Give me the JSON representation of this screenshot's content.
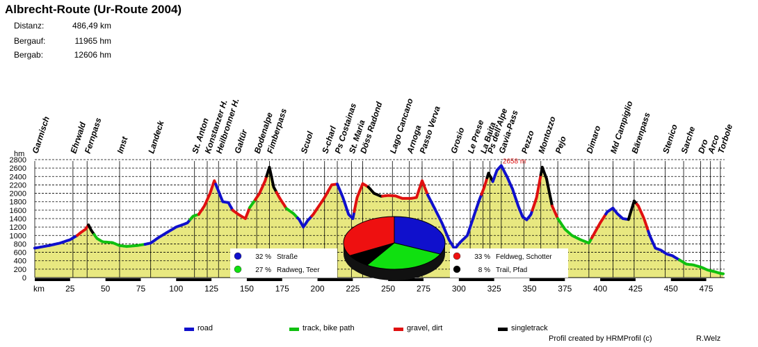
{
  "header": {
    "title": "Albrecht-Route  (Ur-Route 2004)",
    "stats": [
      {
        "label": "Distanz:",
        "value": "486,49 km"
      },
      {
        "label": "Bergauf:",
        "value": "11965 hm"
      },
      {
        "label": "Bergab:",
        "value": "12606 hm"
      }
    ]
  },
  "legend": {
    "items": [
      {
        "label": "road",
        "color": "#1010cc"
      },
      {
        "label": "track, bike path",
        "color": "#10c010"
      },
      {
        "label": "gravel, dirt",
        "color": "#e01010"
      },
      {
        "label": "singletrack",
        "color": "#000000"
      }
    ]
  },
  "footer": {
    "credit": "Profil created by HRMProfil (c)",
    "author": "R.Welz"
  },
  "chart_data": [
    {
      "type": "area",
      "xlabel": "km",
      "ylabel": "hm",
      "xlim": [
        0,
        488
      ],
      "ylim": [
        0,
        2800
      ],
      "x_ticks": [
        25,
        50,
        75,
        100,
        125,
        150,
        175,
        200,
        225,
        250,
        275,
        300,
        325,
        350,
        375,
        400,
        425,
        450,
        475
      ],
      "y_ticks": [
        0,
        200,
        400,
        600,
        800,
        1000,
        1200,
        1400,
        1600,
        1800,
        2000,
        2200,
        2400,
        2600,
        2800
      ],
      "max_label": "2658 m",
      "max_point": {
        "x": 330,
        "y": 2658
      },
      "fill_color": "#e8e880",
      "profile": [
        [
          0,
          700
        ],
        [
          5,
          730
        ],
        [
          10,
          760
        ],
        [
          18,
          820
        ],
        [
          25,
          900
        ],
        [
          30,
          1000
        ],
        [
          33,
          1080
        ],
        [
          36,
          1150
        ],
        [
          38,
          1250
        ],
        [
          40,
          1120
        ],
        [
          44,
          930
        ],
        [
          48,
          850
        ],
        [
          55,
          830
        ],
        [
          60,
          760
        ],
        [
          65,
          740
        ],
        [
          72,
          760
        ],
        [
          78,
          790
        ],
        [
          82,
          820
        ],
        [
          88,
          960
        ],
        [
          95,
          1100
        ],
        [
          100,
          1200
        ],
        [
          105,
          1260
        ],
        [
          108,
          1300
        ],
        [
          112,
          1460
        ],
        [
          116,
          1500
        ],
        [
          120,
          1700
        ],
        [
          124,
          2000
        ],
        [
          127,
          2300
        ],
        [
          130,
          2050
        ],
        [
          133,
          1800
        ],
        [
          137,
          1780
        ],
        [
          140,
          1600
        ],
        [
          144,
          1500
        ],
        [
          149,
          1400
        ],
        [
          152,
          1660
        ],
        [
          155,
          1800
        ],
        [
          159,
          2000
        ],
        [
          163,
          2300
        ],
        [
          166,
          2620
        ],
        [
          169,
          2150
        ],
        [
          173,
          1900
        ],
        [
          178,
          1640
        ],
        [
          183,
          1520
        ],
        [
          187,
          1380
        ],
        [
          190,
          1200
        ],
        [
          193,
          1350
        ],
        [
          197,
          1500
        ],
        [
          201,
          1700
        ],
        [
          205,
          1900
        ],
        [
          210,
          2200
        ],
        [
          214,
          2220
        ],
        [
          218,
          1900
        ],
        [
          222,
          1500
        ],
        [
          225,
          1400
        ],
        [
          228,
          1900
        ],
        [
          232,
          2230
        ],
        [
          236,
          2150
        ],
        [
          240,
          2000
        ],
        [
          245,
          1930
        ],
        [
          250,
          1950
        ],
        [
          255,
          1940
        ],
        [
          260,
          1880
        ],
        [
          266,
          1880
        ],
        [
          270,
          1900
        ],
        [
          274,
          2300
        ],
        [
          278,
          1960
        ],
        [
          282,
          1700
        ],
        [
          288,
          1300
        ],
        [
          293,
          900
        ],
        [
          297,
          680
        ],
        [
          301,
          840
        ],
        [
          306,
          1000
        ],
        [
          310,
          1400
        ],
        [
          314,
          1800
        ],
        [
          318,
          2150
        ],
        [
          321,
          2480
        ],
        [
          324,
          2280
        ],
        [
          327,
          2550
        ],
        [
          330,
          2658
        ],
        [
          334,
          2400
        ],
        [
          338,
          2100
        ],
        [
          342,
          1700
        ],
        [
          345,
          1450
        ],
        [
          348,
          1370
        ],
        [
          351,
          1500
        ],
        [
          355,
          1900
        ],
        [
          359,
          2620
        ],
        [
          362,
          2350
        ],
        [
          366,
          1700
        ],
        [
          370,
          1400
        ],
        [
          375,
          1150
        ],
        [
          380,
          1000
        ],
        [
          386,
          900
        ],
        [
          392,
          820
        ],
        [
          396,
          1060
        ],
        [
          400,
          1300
        ],
        [
          405,
          1560
        ],
        [
          409,
          1650
        ],
        [
          412,
          1520
        ],
        [
          416,
          1400
        ],
        [
          420,
          1380
        ],
        [
          424,
          1820
        ],
        [
          427,
          1700
        ],
        [
          431,
          1400
        ],
        [
          435,
          1000
        ],
        [
          439,
          700
        ],
        [
          443,
          650
        ],
        [
          447,
          560
        ],
        [
          451,
          520
        ],
        [
          456,
          420
        ],
        [
          461,
          320
        ],
        [
          466,
          300
        ],
        [
          472,
          240
        ],
        [
          476,
          180
        ],
        [
          481,
          140
        ],
        [
          485,
          100
        ],
        [
          487,
          90
        ]
      ],
      "segments": [
        {
          "type": "road",
          "from": 0,
          "to": 30
        },
        {
          "type": "gravel",
          "from": 30,
          "to": 38
        },
        {
          "type": "singletrack",
          "from": 38,
          "to": 42
        },
        {
          "type": "track",
          "from": 42,
          "to": 78
        },
        {
          "type": "road",
          "from": 78,
          "to": 110
        },
        {
          "type": "track",
          "from": 110,
          "to": 116
        },
        {
          "type": "gravel",
          "from": 116,
          "to": 128
        },
        {
          "type": "road",
          "from": 128,
          "to": 140
        },
        {
          "type": "gravel",
          "from": 140,
          "to": 152
        },
        {
          "type": "track",
          "from": 152,
          "to": 156
        },
        {
          "type": "gravel",
          "from": 156,
          "to": 164
        },
        {
          "type": "singletrack",
          "from": 164,
          "to": 171
        },
        {
          "type": "gravel",
          "from": 171,
          "to": 178
        },
        {
          "type": "track",
          "from": 178,
          "to": 186
        },
        {
          "type": "road",
          "from": 186,
          "to": 196
        },
        {
          "type": "gravel",
          "from": 196,
          "to": 214
        },
        {
          "type": "road",
          "from": 214,
          "to": 226
        },
        {
          "type": "gravel",
          "from": 226,
          "to": 236
        },
        {
          "type": "singletrack",
          "from": 236,
          "to": 246
        },
        {
          "type": "gravel",
          "from": 246,
          "to": 278
        },
        {
          "type": "road",
          "from": 278,
          "to": 316
        },
        {
          "type": "gravel",
          "from": 316,
          "to": 320
        },
        {
          "type": "singletrack",
          "from": 320,
          "to": 324
        },
        {
          "type": "road",
          "from": 324,
          "to": 352
        },
        {
          "type": "gravel",
          "from": 352,
          "to": 358
        },
        {
          "type": "singletrack",
          "from": 358,
          "to": 366
        },
        {
          "type": "gravel",
          "from": 366,
          "to": 370
        },
        {
          "type": "track",
          "from": 370,
          "to": 394
        },
        {
          "type": "gravel",
          "from": 394,
          "to": 404
        },
        {
          "type": "road",
          "from": 404,
          "to": 420
        },
        {
          "type": "singletrack",
          "from": 420,
          "to": 426
        },
        {
          "type": "gravel",
          "from": 426,
          "to": 434
        },
        {
          "type": "road",
          "from": 434,
          "to": 456
        },
        {
          "type": "track",
          "from": 456,
          "to": 487
        }
      ],
      "waypoints": [
        {
          "name": "Garmisch",
          "x": 0
        },
        {
          "name": "Ehrwald",
          "x": 27
        },
        {
          "name": "Fernpass",
          "x": 37
        },
        {
          "name": "Imst",
          "x": 60
        },
        {
          "name": "Landeck",
          "x": 82
        },
        {
          "name": "St. Anton",
          "x": 113
        },
        {
          "name": "Konstanzer H.",
          "x": 122
        },
        {
          "name": "Heilbronner H.",
          "x": 130
        },
        {
          "name": "Galtür",
          "x": 143
        },
        {
          "name": "Bodenalpe",
          "x": 157
        },
        {
          "name": "Fimberpass",
          "x": 166
        },
        {
          "name": "Scuol",
          "x": 190
        },
        {
          "name": "S-charl",
          "x": 205
        },
        {
          "name": "Ps Costainas",
          "x": 214
        },
        {
          "name": "St. Maria",
          "x": 224
        },
        {
          "name": "Döss Radond",
          "x": 232
        },
        {
          "name": "Lago Cancano",
          "x": 253
        },
        {
          "name": "Arnoga",
          "x": 265
        },
        {
          "name": "Passo Verva",
          "x": 274
        },
        {
          "name": "Grosio",
          "x": 296
        },
        {
          "name": "Le Prese",
          "x": 308
        },
        {
          "name": "La Baita",
          "x": 317
        },
        {
          "name": "Ps dell'Alpe",
          "x": 322
        },
        {
          "name": "Gavia-Pass",
          "x": 330
        },
        {
          "name": "Pezzo",
          "x": 346
        },
        {
          "name": "Montozzo",
          "x": 358
        },
        {
          "name": "Pejo",
          "x": 370
        },
        {
          "name": "Dimaro",
          "x": 392
        },
        {
          "name": "Md Campiglio",
          "x": 409
        },
        {
          "name": "Bärenpass",
          "x": 424
        },
        {
          "name": "Stenico",
          "x": 446
        },
        {
          "name": "Sarche",
          "x": 459
        },
        {
          "name": "Dro",
          "x": 471
        },
        {
          "name": "Arco",
          "x": 478
        },
        {
          "name": "Torbole",
          "x": 485
        }
      ]
    },
    {
      "type": "pie",
      "slices": [
        {
          "label": "Straße",
          "value": 32,
          "color": "#1010cc"
        },
        {
          "label": "Radweg, Teer",
          "value": 27,
          "color": "#10e010"
        },
        {
          "label": "Feldweg, Schotter",
          "value": 33,
          "color": "#ee1010"
        },
        {
          "label": "Trail, Pfad",
          "value": 8,
          "color": "#000000"
        }
      ],
      "legend_labels": [
        "32 %",
        "27 %",
        "33 %",
        "8 %"
      ]
    }
  ]
}
